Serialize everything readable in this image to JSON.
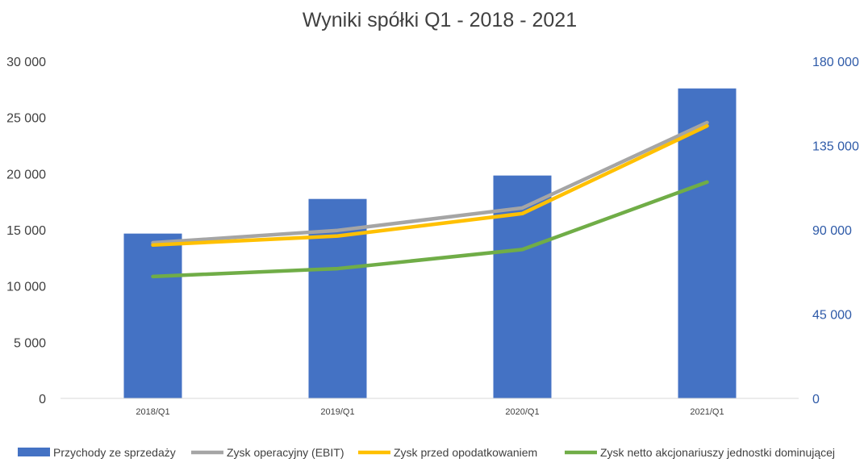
{
  "chart_data": {
    "type": "bar",
    "title": "Wyniki spółki Q1 - 2018 - 2021",
    "categories": [
      "2018/Q1",
      "2019/Q1",
      "2020/Q1",
      "2021/Q1"
    ],
    "y_left": {
      "range": [
        0,
        30000
      ],
      "ticks": [
        "0",
        "5 000",
        "10 000",
        "15 000",
        "20 000",
        "25 000",
        "30 000"
      ]
    },
    "y_right": {
      "range": [
        0,
        180000
      ],
      "ticks": [
        "0",
        "45 000",
        "90 000",
        "135 000",
        "180 000"
      ]
    },
    "grid": false,
    "legend_position": "bottom",
    "series": [
      {
        "name": "Przychody ze sprzedaży",
        "kind": "bar",
        "axis": "right",
        "color": "#4472c4",
        "values": [
          88000,
          106500,
          119000,
          165500
        ]
      },
      {
        "name": "Zysk operacyjny (EBIT)",
        "kind": "line",
        "axis": "left",
        "color": "#a5a5a5",
        "values": [
          13850,
          14950,
          16950,
          24550
        ]
      },
      {
        "name": "Zysk przed opodatkowaniem",
        "kind": "line",
        "axis": "left",
        "color": "#ffc000",
        "values": [
          13650,
          14450,
          16450,
          24250
        ]
      },
      {
        "name": "Zysk netto akcjonariuszy jednostki dominującej",
        "kind": "line",
        "axis": "left",
        "color": "#70ad47",
        "values": [
          10850,
          11550,
          13250,
          19250
        ]
      }
    ]
  }
}
